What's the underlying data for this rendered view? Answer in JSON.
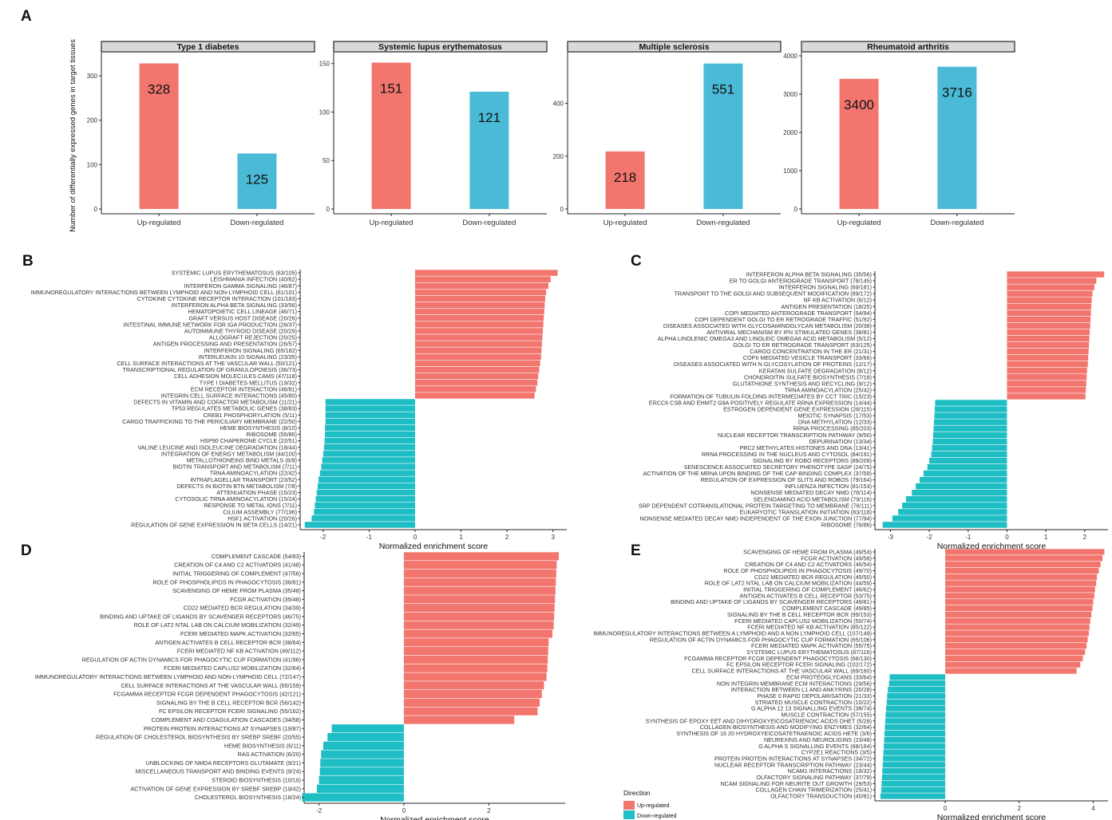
{
  "colors": {
    "up": "#F2756E",
    "down": "#1EBEC4",
    "down_panel_a": "#4BBAD6",
    "strip_bg": "#d9d9d9"
  },
  "panel_labels": [
    "A",
    "B",
    "C",
    "D",
    "E"
  ],
  "chart_data": [
    {
      "panel": "A",
      "type": "bar",
      "ylabel": "Number of differentially expressed genes in target tissues",
      "facets": [
        {
          "title": "Type 1 diabetes",
          "categories": [
            "Up-regulated",
            "Down-regulated"
          ],
          "values": [
            328,
            125
          ],
          "value_labels": [
            "328",
            "125"
          ],
          "ylim": [
            0,
            345
          ],
          "yticks": [
            0,
            100,
            200,
            300
          ]
        },
        {
          "title": "Systemic lupus erythematosus",
          "categories": [
            "Up-regulated",
            "Down-regulated"
          ],
          "values": [
            151,
            121
          ],
          "value_labels": [
            "151",
            "121"
          ],
          "ylim": [
            0,
            158
          ],
          "yticks": [
            0,
            50,
            100,
            150
          ]
        },
        {
          "title": "Multiple sclerosis",
          "categories": [
            "Up-regulated",
            "Down-regulated"
          ],
          "values": [
            218,
            551
          ],
          "value_labels": [
            "218",
            "551"
          ],
          "ylim": [
            0,
            580
          ],
          "yticks": [
            0,
            200,
            400
          ]
        },
        {
          "title": "Rheumatoid arthritis",
          "categories": [
            "Up-regulated",
            "Down-regulated"
          ],
          "values": [
            3400,
            3716
          ],
          "value_labels": [
            "3400",
            "3716"
          ],
          "ylim": [
            0,
            4000
          ],
          "yticks": [
            0,
            1000,
            2000,
            3000,
            4000
          ]
        }
      ]
    },
    {
      "panel": "B",
      "type": "bar",
      "xlabel": "Normalized enrichment score",
      "xlim": [
        -2.5,
        3.3
      ],
      "xticks": [
        -2,
        -1,
        0,
        1,
        2,
        3
      ],
      "labels": [
        "SYSTEMIC LUPUS ERYTHEMATOSUS (63/105)",
        "LEISHMANIA INFECTION (40/62)",
        "INTERFERON GAMMA SIGNALING (46/87)",
        "IMMUNOREGULATORY INTERACTIONS BETWEEN LYMPHOID AND NON-LYMPHOID CELL (61/101)",
        "CYTOKINE CYTOKINE RECEPTOR INTERACTION (101/183)",
        "INTERFERON ALPHA BETA SIGNALING (33/56)",
        "HEMATOPOIETIC CELL LINEAGE (46/71)",
        "GRAFT VERSUS HOST DISEASE (20/26)",
        "INTESTINAL IMMUNE NETWORK FOR IGA PRODUCTION (26/37)",
        "AUTOIMMUNE THYROID DISEASE (20/29)",
        "ALLOGRAFT REJECTION (20/25)",
        "ANTIGEN PROCESSING AND PRESENTATION (26/57)",
        "INTERFERON SIGNALING (65/182)",
        "INTERLEUKIN 10 SIGNALING (23/35)",
        "CELL SURFACE INTERACTIONS AT THE VASCULAR WALL (50/121)",
        "TRANSCRIPTIONAL REGULATION OF GRANULOPOIESIS (36/73)",
        "CELL ADHESION MOLECULES CAMS (47/118)",
        "TYPE I DIABETES MELLITUS (19/32)",
        "ECM RECEPTOR INTERACTION (46/81)",
        "INTEGRIN CELL SURFACE INTERACTIONS (45/80)",
        "DEFECTS IN VITAMIN AND COFACTOR METABOLISM (11/21)",
        "TP53 REGULATES METABOLIC GENES (38/83)",
        "CREB1 PHOSPHORYLATION (5/11)",
        "CARGO TRAFFICKING TO THE PERICILIARY MEMBRANE (22/50)",
        "HEME BIOSYNTHESIS (8/10)",
        "RIBOSOME (55/86)",
        "HSP90 CHAPERONE CYCLE (22/51)",
        "VALINE LEUCINE AND ISOLEUCINE DEGRADATION (18/44)",
        "INTEGRATION OF ENERGY METABOLISM (44/100)",
        "METALLOTHIONEINS BIND METALS (6/8)",
        "BIOTIN TRANSPORT AND METABOLISM (7/11)",
        "TRNA AMINOACYLATION (22/42)",
        "INTRAFLAGELLAR TRANSPORT (23/52)",
        "DEFECTS IN BIOTIN BTN METABOLISM (7/8)",
        "ATTENUATION PHASE (15/23)",
        "CYTOSOLIC TRNA AMINOACYLATION (15/24)",
        "RESPONSE TO METAL IONS (7/11)",
        "CILIUM ASSEMBLY (77/196)",
        "HSF1 ACTIVATION (20/26)",
        "REGULATION OF GENE EXPRESSION IN BETA CELLS (14/21)"
      ],
      "values": [
        3.1,
        2.95,
        2.9,
        2.85,
        2.83,
        2.82,
        2.81,
        2.8,
        2.79,
        2.78,
        2.77,
        2.76,
        2.75,
        2.74,
        2.72,
        2.7,
        2.68,
        2.66,
        2.63,
        2.6,
        -1.95,
        -1.95,
        -1.95,
        -1.95,
        -1.96,
        -1.96,
        -1.97,
        -1.98,
        -2.0,
        -2.02,
        -2.04,
        -2.07,
        -2.1,
        -2.12,
        -2.14,
        -2.16,
        -2.18,
        -2.2,
        -2.25,
        -2.4
      ]
    },
    {
      "panel": "C",
      "type": "bar",
      "xlabel": "Normalized enrichment score",
      "xlim": [
        -3.4,
        2.6
      ],
      "xticks": [
        -3,
        -2,
        -1,
        0,
        1,
        2
      ],
      "labels": [
        "INTERFERON ALPHA BETA SIGNALING (35/56)",
        "ER TO GOLGI ANTEROGRADE TRANSPORT (78/145)",
        "INTERFERON SIGNALING (69/181)",
        "TRANSPORT TO THE GOLGI AND SUBSEQUENT MODIFICATION (89/172)",
        "NF KB ACTIVATION (6/12)",
        "ANTIGEN PRESENTATION (18/25)",
        "COPI MEDIATED ANTEROGRADE TRANSPORT (54/94)",
        "COPI DEPENDENT GOLGI TO ER RETROGRADE TRAFFIC (51/92)",
        "DISEASES ASSOCIATED WITH GLYCOSAMINOGLYCAN METABOLISM (20/38)",
        "ANTIVIRAL MECHANISM BY IFN STIMULATED GENES (38/81)",
        "ALPHA LINOLENIC OMEGA3 AND LINOLEIC OMEGA6 ACID METABOLISM (5/12)",
        "GOLGI TO ER RETROGRADE TRANSPORT (63/125)",
        "CARGO CONCENTRATION IN THE ER (21/31)",
        "COPII MEDIATED VESICLE TRANSPORT (33/66)",
        "DISEASES ASSOCIATED WITH N GLYCOSYLATION OF PROTEINS (12/17)",
        "KERATAN SULFATE DEGRADATION (8/12)",
        "CHONDROITIN SULFATE BIOSYNTHESIS (7/18)",
        "GLUTATHIONE SYNTHESIS AND RECYCLING (9/12)",
        "TRNA AMINOACYLATION (25/42)",
        "FORMATION OF TUBULIN FOLDING INTERMEDIATES BY CCT TRIC (15/23)",
        "ERCC6 CSB AND EHMT2 G9A POSITIVELY REGULATE RRNA EXPRESSION (14/44)",
        "ESTROGEN DEPENDENT GENE EXPRESSION (28/115)",
        "MEIOTIC SYNAPSIS (17/53)",
        "DNA METHYLATION (12/33)",
        "RRNA PROCESSING (85/203)",
        "NUCLEAR RECEPTOR TRANSCRIPTION PATHWAY (9/50)",
        "DEPURINATION (13/34)",
        "PRC2 METHYLATES HISTONES AND DNA (13/41)",
        "RRNA PROCESSING IN THE NUCLEUS AND CYTOSOL (84/191)",
        "SIGNALING BY ROBO RECEPTORS (89/209)",
        "SENESCENCE ASSOCIATED SECRETORY PHENOTYPE SASP (24/75)",
        "ACTIVATION OF THE MRNA UPON BINDING OF THE CAP BINDING COMPLEX (37/59)",
        "REGULATION OF EXPRESSION OF SLITS AND ROBOS (79/164)",
        "INFLUENZA INFECTION (81/153)",
        "NONSENSE MEDIATED DECAY NMD (78/114)",
        "SELENOAMINO ACID METABOLISM (79/116)",
        "SRP DEPENDENT COTRANSLATIONAL PROTEIN TARGETING TO MEMBRANE (76/111)",
        "EUKARYOTIC TRANSLATION INITIATION (83/118)",
        "NONSENSE MEDIATED DECAY NMD INDEPENDENT OF THE EXON JUNCTION (77/94)",
        "RIBOSOME (76/86)"
      ],
      "values": [
        2.5,
        2.3,
        2.25,
        2.2,
        2.18,
        2.17,
        2.16,
        2.15,
        2.14,
        2.13,
        2.12,
        2.11,
        2.1,
        2.09,
        2.08,
        2.06,
        2.05,
        2.04,
        2.03,
        2.02,
        -1.85,
        -1.86,
        -1.87,
        -1.88,
        -1.89,
        -1.9,
        -1.91,
        -1.93,
        -1.95,
        -2.0,
        -2.05,
        -2.15,
        -2.25,
        -2.35,
        -2.45,
        -2.6,
        -2.7,
        -2.8,
        -2.95,
        -3.2
      ]
    },
    {
      "panel": "D",
      "type": "bar",
      "xlabel": "Normalized enrichment score",
      "xlim": [
        -2.35,
        3.8
      ],
      "xticks": [
        -2,
        0,
        2
      ],
      "labels": [
        "COMPLEMENT CASCADE (54/83)",
        "CREATION OF C4 AND C2 ACTIVATORS (41/48)",
        "INITIAL TRIGGERING OF COMPLEMENT (47/56)",
        "ROLE OF PHOSPHOLIPIDS IN PHAGOCYTOSIS (36/61)",
        "SCAVENGING OF HEME FROM PLASMA (35/48)",
        "FCGR ACTIVATION (35/48)",
        "CD22 MEDIATED BCR REGULATION (34/39)",
        "BINDING AND UPTAKE OF LIGANDS BY SCAVENGER RECEPTORS (46/75)",
        "ROLE OF LAT2 NTAL LAB ON CALCIUM MOBILIZATION (32/49)",
        "FCERI MEDIATED MAPK ACTIVATION (32/65)",
        "ANTIGEN ACTIVATES B CELL RECEPTOR BCR (38/64)",
        "FCERI MEDIATED NF KB ACTIVATION (46/112)",
        "REGULATION OF ACTIN DYNAMICS FOR PHAGOCYTIC CUP FORMATION (41/96)",
        "FCERI MEDIATED CAPLUS2 MOBILIZATION (32/64)",
        "IMMUNOREGULATORY INTERACTIONS BETWEEN LYMPHOID AND NON-LYMPHOID CELL (72/147)",
        "CELL SURFACE INTERACTIONS AT THE VASCULAR WALL (65/159)",
        "FCGAMMA RECEPTOR FCGR DEPENDENT PHAGOCYTOSIS (42/121)",
        "SIGNALING BY THE B CELL RECEPTOR BCR (56/142)",
        "FC EPSILON RECEPTOR FCERI SIGNALING (55/162)",
        "COMPLEMENT AND COAGULATION CASCADES (34/58)",
        "PROTEIN PROTEIN INTERACTIONS AT SYNAPSES (19/87)",
        "REGULATION OF CHOLESTEROL BIOSYNTHESIS BY SREBP SREBF (20/55)",
        "HEME BIOSYNTHESIS (6/11)",
        "RAS ACTIVATION (6/20)",
        "UNBLOCKING OF NMDA RECEPTORS GLUTAMATE (9/21)",
        "MISCELLANEOUS TRANSPORT AND BINDING EVENTS (9/24)",
        "STEROID BIOSYNTHESIS (10/16)",
        "ACTIVATION OF GENE EXPRESSION BY SREBF SREBP (19/42)",
        "CHOLESTEROL BIOSYNTHESIS (18/24)"
      ],
      "values": [
        3.65,
        3.6,
        3.59,
        3.58,
        3.57,
        3.56,
        3.55,
        3.54,
        3.53,
        3.5,
        3.41,
        3.4,
        3.39,
        3.38,
        3.36,
        3.3,
        3.25,
        3.2,
        3.15,
        2.6,
        -1.7,
        -1.8,
        -1.9,
        -1.95,
        -1.97,
        -1.98,
        -2.0,
        -2.05,
        -2.4
      ]
    },
    {
      "panel": "E",
      "type": "bar",
      "xlabel": "Normalized enrichment score",
      "xlim": [
        -1.9,
        4.4
      ],
      "xticks": [
        0,
        2,
        4
      ],
      "labels": [
        "SCAVENGING OF HEME FROM PLASMA (49/54)",
        "FCGR ACTIVATION (49/58)",
        "CREATION OF C4 AND C2 ACTIVATORS (46/54)",
        "ROLE OF PHOSPHOLIPIDS IN PHAGOCYTOSIS (49/70)",
        "CD22 MEDIATED BCR REGULATION (45/50)",
        "ROLE OF LAT2 NTAL LAB ON CALCIUM MOBILIZATION (44/59)",
        "INITIAL TRIGGERING OF COMPLEMENT (46/62)",
        "ANTIGEN ACTIVATES B CELL RECEPTOR (53/75)",
        "BINDING AND UPTAKE OF LIGANDS BY SCAVENGER RECEPTORS (49/81)",
        "COMPLEMENT CASCADE (49/85)",
        "SIGNALING BY THE B CELL RECEPTOR BCR (99/153)",
        "FCERI MEDIATED CAPLUS2 MOBILIZATION (50/74)",
        "FCERI MEDIATED NF KB ACTIVATION (85/122)",
        "IMMUNOREGULATORY INTERACTIONS BETWEEN A LYMPHOID AND A NON LYMPHOID CELL (107/149)",
        "REGULATION OF ACTIN DYNAMICS FOR PHAGOCYTIC CUP FORMATION (65/106)",
        "FCERI MEDIATED MAPK ACTIVATION (55/75)",
        "SYSTEMIC LUPUS ERYTHEMATOSUS (87/116)",
        "FCGAMMA RECEPTOR FCGR DEPENDENT PHAGOCYTOSIS (66/130)",
        "FC EPSILON RECEPTOR FCERI SIGNALING (102/172)",
        "CELL SURFACE INTERACTIONS AT THE VASCULAR WALL (69/160)",
        "ECM PROTEOGLYCANS (33/64)",
        "NON INTEGRIN MEMBRANE ECM INTERACTIONS (29/56)",
        "INTERACTION BETWEEN L1 AND ANKYRINS (20/28)",
        "PHASE 0 RAPID DEPOLARISATION (21/33)",
        "STRIATED MUSCLE CONTRACTION (10/22)",
        "G ALPHA 12 13 SIGNALLING EVENTS (38/74)",
        "MUSCLE CONTRACTION (57/155)",
        "SYNTHESIS OF EPOXY EET AND DIHYDROXYEICOSATRIENOIC ACIDS DHET (5/28)",
        "COLLAGEN BIOSYNTHESIS AND MODIFYING ENZYMES (32/64)",
        "SYNTHESIS OF 16 20 HYDROXYEICOSATETRAENOIC ACIDS HETE (3/6)",
        "NEUREXINS AND NEUROLIGINS (23/48)",
        "G ALPHA S SIGNALLING EVENTS (68/164)",
        "CYP2E1 REACTIONS (3/5)",
        "PROTEIN PROTEIN INTERACTIONS AT SYNAPSES (34/72)",
        "NUCLEAR RECEPTOR TRANSCRIPTION PATHWAY (23/44)",
        "NCAM1 INTERACTIONS (18/32)",
        "OLFACTORY SIGNALING PATHWAY (37/79)",
        "NCAM SIGNALING FOR NEURITE OUT GROWTH (29/53)",
        "COLLAGEN CHAIN TRIMERIZATION (25/41)",
        "OLFACTORY TRANSDUCTION (40/81)"
      ],
      "values": [
        4.3,
        4.25,
        4.2,
        4.15,
        4.1,
        4.08,
        4.05,
        4.03,
        4.0,
        3.98,
        3.95,
        3.92,
        3.9,
        3.88,
        3.85,
        3.82,
        3.78,
        3.72,
        3.65,
        3.55,
        -1.5,
        -1.52,
        -1.55,
        -1.57,
        -1.58,
        -1.6,
        -1.61,
        -1.62,
        -1.63,
        -1.64,
        -1.65,
        -1.66,
        -1.67,
        -1.68,
        -1.69,
        -1.7,
        -1.71,
        -1.72,
        -1.73,
        -1.75
      ]
    }
  ],
  "legend": {
    "title": "Direction",
    "items": [
      "Up-regulated",
      "Down-regulated"
    ]
  }
}
